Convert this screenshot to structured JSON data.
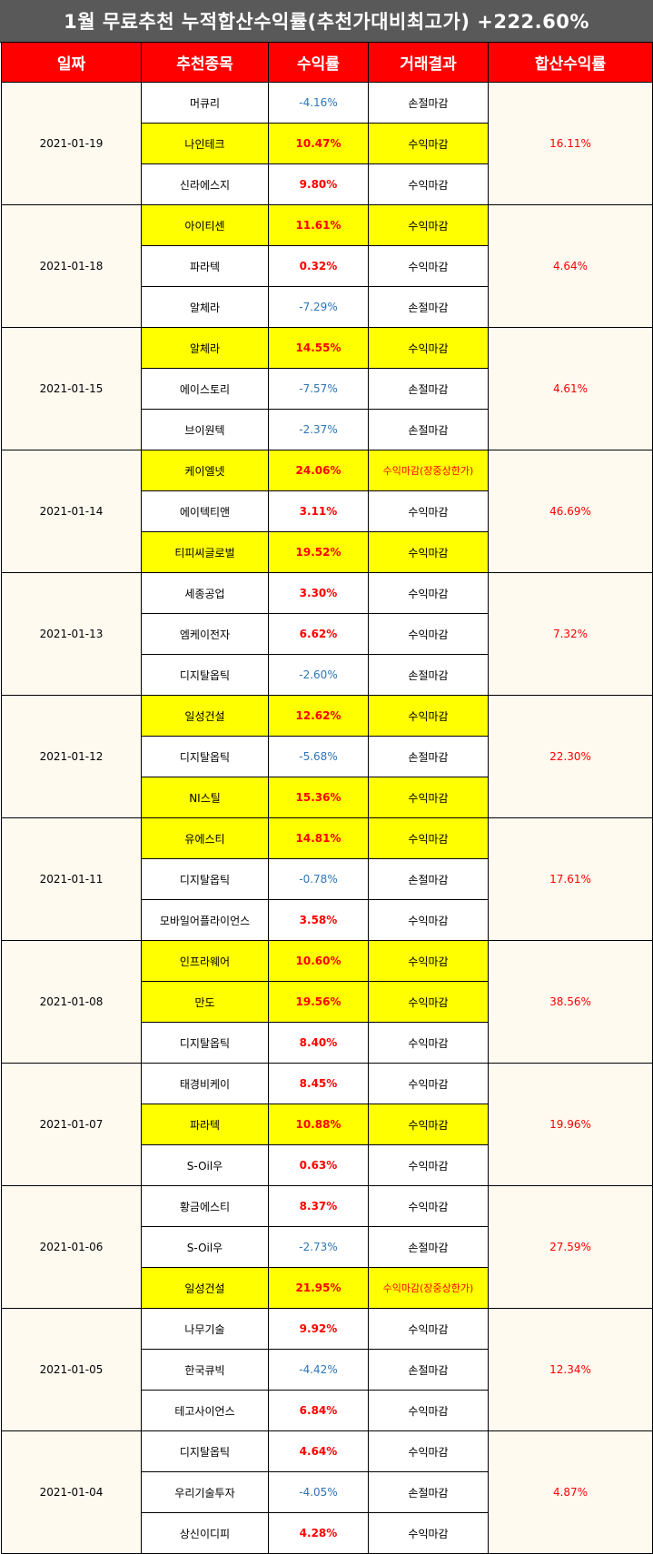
{
  "title": "1월 무료추천 누적합산수익률(추천가대비최고가) +222.60%",
  "headers": [
    "일짜",
    "추천종목",
    "수익률",
    "거래결과",
    "합산수익률"
  ],
  "colors": {
    "header_bg": "#ff0000",
    "highlight": "#ffff00",
    "positive": "#ff0000",
    "negative": "#2e75b6",
    "title_bg": "#595959"
  },
  "groups": [
    {
      "date": "2021-01-19",
      "total": "16.11%",
      "rows": [
        {
          "name": "머큐리",
          "return": "-4.16%",
          "result": "손절마감",
          "highlight": false
        },
        {
          "name": "나인테크",
          "return": "10.47%",
          "result": "수익마감",
          "highlight": true
        },
        {
          "name": "신라에스지",
          "return": "9.80%",
          "result": "수익마감",
          "highlight": false
        }
      ]
    },
    {
      "date": "2021-01-18",
      "total": "4.64%",
      "rows": [
        {
          "name": "아이티센",
          "return": "11.61%",
          "result": "수익마감",
          "highlight": true
        },
        {
          "name": "파라텍",
          "return": "0.32%",
          "result": "수익마감",
          "highlight": false
        },
        {
          "name": "알체라",
          "return": "-7.29%",
          "result": "손절마감",
          "highlight": false
        }
      ]
    },
    {
      "date": "2021-01-15",
      "total": "4.61%",
      "rows": [
        {
          "name": "알체라",
          "return": "14.55%",
          "result": "수익마감",
          "highlight": true
        },
        {
          "name": "에이스토리",
          "return": "-7.57%",
          "result": "손절마감",
          "highlight": false
        },
        {
          "name": "브이원텍",
          "return": "-2.37%",
          "result": "손절마감",
          "highlight": false
        }
      ]
    },
    {
      "date": "2021-01-14",
      "total": "46.69%",
      "rows": [
        {
          "name": "케이엘넷",
          "return": "24.06%",
          "result": "수익마감(장중상한가)",
          "highlight": true
        },
        {
          "name": "에이텍티앤",
          "return": "3.11%",
          "result": "수익마감",
          "highlight": false
        },
        {
          "name": "티피씨글로벌",
          "return": "19.52%",
          "result": "수익마감",
          "highlight": true
        }
      ]
    },
    {
      "date": "2021-01-13",
      "total": "7.32%",
      "rows": [
        {
          "name": "세종공업",
          "return": "3.30%",
          "result": "수익마감",
          "highlight": false
        },
        {
          "name": "엠케이전자",
          "return": "6.62%",
          "result": "수익마감",
          "highlight": false
        },
        {
          "name": "디지탈옵틱",
          "return": "-2.60%",
          "result": "손절마감",
          "highlight": false
        }
      ]
    },
    {
      "date": "2021-01-12",
      "total": "22.30%",
      "rows": [
        {
          "name": "일성건설",
          "return": "12.62%",
          "result": "수익마감",
          "highlight": true
        },
        {
          "name": "디지탈옵틱",
          "return": "-5.68%",
          "result": "손절마감",
          "highlight": false
        },
        {
          "name": "NI스틸",
          "return": "15.36%",
          "result": "수익마감",
          "highlight": true
        }
      ]
    },
    {
      "date": "2021-01-11",
      "total": "17.61%",
      "rows": [
        {
          "name": "유에스티",
          "return": "14.81%",
          "result": "수익마감",
          "highlight": true
        },
        {
          "name": "디지탈옵틱",
          "return": "-0.78%",
          "result": "손절마감",
          "highlight": false
        },
        {
          "name": "모바일어플라이언스",
          "return": "3.58%",
          "result": "수익마감",
          "highlight": false
        }
      ]
    },
    {
      "date": "2021-01-08",
      "total": "38.56%",
      "rows": [
        {
          "name": "인프라웨어",
          "return": "10.60%",
          "result": "수익마감",
          "highlight": true
        },
        {
          "name": "만도",
          "return": "19.56%",
          "result": "수익마감",
          "highlight": true
        },
        {
          "name": "디지탈옵틱",
          "return": "8.40%",
          "result": "수익마감",
          "highlight": false
        }
      ]
    },
    {
      "date": "2021-01-07",
      "total": "19.96%",
      "rows": [
        {
          "name": "태경비케이",
          "return": "8.45%",
          "result": "수익마감",
          "highlight": false
        },
        {
          "name": "파라텍",
          "return": "10.88%",
          "result": "수익마감",
          "highlight": true
        },
        {
          "name": "S-Oil우",
          "return": "0.63%",
          "result": "수익마감",
          "highlight": false
        }
      ]
    },
    {
      "date": "2021-01-06",
      "total": "27.59%",
      "rows": [
        {
          "name": "황금에스티",
          "return": "8.37%",
          "result": "수익마감",
          "highlight": false
        },
        {
          "name": "S-Oil우",
          "return": "-2.73%",
          "result": "손절마감",
          "highlight": false
        },
        {
          "name": "일성건설",
          "return": "21.95%",
          "result": "수익마감(장중상한가)",
          "highlight": true
        }
      ]
    },
    {
      "date": "2021-01-05",
      "total": "12.34%",
      "rows": [
        {
          "name": "나무기술",
          "return": "9.92%",
          "result": "수익마감",
          "highlight": false
        },
        {
          "name": "한국큐빅",
          "return": "-4.42%",
          "result": "손절마감",
          "highlight": false
        },
        {
          "name": "테고사이언스",
          "return": "6.84%",
          "result": "수익마감",
          "highlight": false
        }
      ]
    },
    {
      "date": "2021-01-04",
      "total": "4.87%",
      "rows": [
        {
          "name": "디지탈옵틱",
          "return": "4.64%",
          "result": "수익마감",
          "highlight": false
        },
        {
          "name": "우리기술투자",
          "return": "-4.05%",
          "result": "손절마감",
          "highlight": false
        },
        {
          "name": "상신이디피",
          "return": "4.28%",
          "result": "수익마감",
          "highlight": false
        }
      ]
    }
  ]
}
